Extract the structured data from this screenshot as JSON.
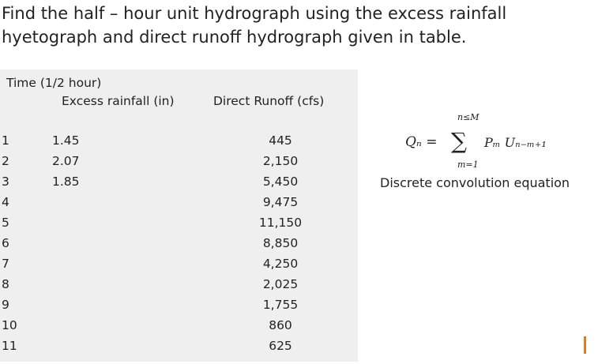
{
  "heading": "Find the half – hour unit hydrograph using the excess rainfall hyetograph and direct runoff hydrograph given in table.",
  "table": {
    "headers": {
      "time": "Time (1/2 hour)",
      "rainfall": "Excess rainfall (in)",
      "runoff": "Direct Runoff (cfs)"
    },
    "rows": [
      {
        "time": "1",
        "rainfall": "1.45",
        "runoff": "445"
      },
      {
        "time": "2",
        "rainfall": "2.07",
        "runoff": "2,150"
      },
      {
        "time": "3",
        "rainfall": "1.85",
        "runoff": "5,450"
      },
      {
        "time": "4",
        "rainfall": "",
        "runoff": "9,475"
      },
      {
        "time": "5",
        "rainfall": "",
        "runoff": "11,150"
      },
      {
        "time": "6",
        "rainfall": "",
        "runoff": "8,850"
      },
      {
        "time": "7",
        "rainfall": "",
        "runoff": "4,250"
      },
      {
        "time": "8",
        "rainfall": "",
        "runoff": "2,025"
      },
      {
        "time": "9",
        "rainfall": "",
        "runoff": "1,755"
      },
      {
        "time": "10",
        "rainfall": "",
        "runoff": "860"
      },
      {
        "time": "11",
        "rainfall": "",
        "runoff": "625"
      }
    ]
  },
  "formula": {
    "upper_limit": "n≤M",
    "lhs": "Qₙ =",
    "sigma": "∑",
    "rhs": "Pₘ Uₙ₋ₘ₊₁",
    "lower_limit": "m=1"
  },
  "caption": "Discrete convolution equation",
  "colors": {
    "accent_mark": "#e07a2a",
    "table_bg": "#efefef"
  }
}
